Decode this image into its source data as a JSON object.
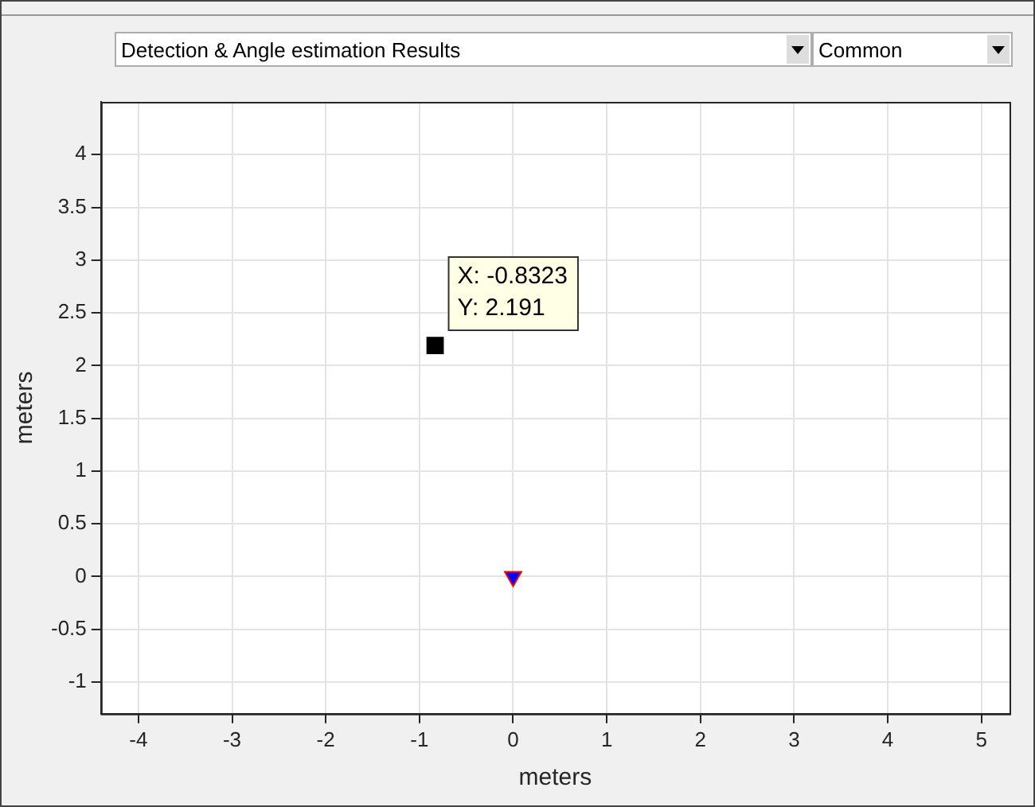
{
  "chart_data": {
    "type": "scatter",
    "xlabel": "meters",
    "ylabel": "meters",
    "xlim": [
      -4.4,
      5.3
    ],
    "xticks": [
      -4,
      -3,
      -2,
      -1,
      0,
      1,
      2,
      3,
      4,
      5
    ],
    "ylim": [
      -1.3,
      4.5
    ],
    "yticks": [
      -1,
      -0.5,
      0,
      0.5,
      1,
      1.5,
      2,
      2.5,
      3,
      3.5,
      4
    ],
    "grid": true,
    "legend": false,
    "series": [
      {
        "color": "#000000",
        "marker": "square",
        "x": [
          -0.8323
        ],
        "values": [
          2.191
        ]
      },
      {
        "color": "#0000ff",
        "marker": "triangle",
        "x": [
          0
        ],
        "values": [
          0
        ]
      }
    ],
    "annotations": [
      "Detection & Angle estimation Results",
      "Common",
      {
        "text": "X: -0.8323\nY: 2.191",
        "x": -0.8323,
        "y": 2.191
      }
    ]
  }
}
